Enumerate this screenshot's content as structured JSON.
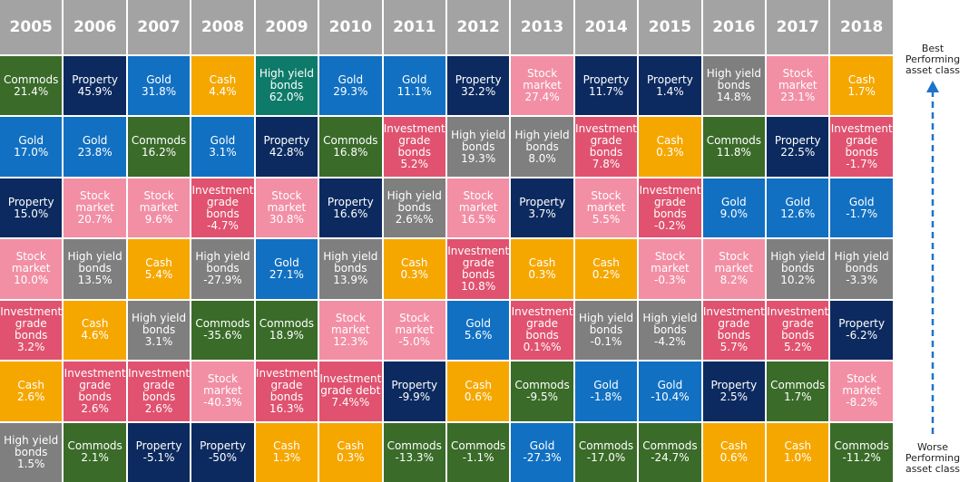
{
  "legend": {
    "top": "Best Performing asset class",
    "bottom": "Worse Performing asset class"
  },
  "colors": {
    "Commods": "#3a6b29",
    "Property": "#0c2a5f",
    "Gold": "#1170c2",
    "Cash": "#f5a700",
    "Stock market": "#f28fa5",
    "High yield bonds": "#7f7f7f",
    "Investment grade bonds": "#e0526f",
    "Investment grade debt": "#e0526f"
  },
  "table": {
    "columns": [
      {
        "year": "2005",
        "cells": [
          [
            "Commods",
            "21.4%"
          ],
          [
            "Gold",
            "17.0%"
          ],
          [
            "Property",
            "15.0%"
          ],
          [
            "Stock market",
            "10.0%"
          ],
          [
            "Investment grade bonds",
            "3.2%"
          ],
          [
            "Cash",
            "2.6%"
          ],
          [
            "High yield bonds",
            "1.5%"
          ]
        ]
      },
      {
        "year": "2006",
        "cells": [
          [
            "Property",
            "45.9%"
          ],
          [
            "Gold",
            "23.8%"
          ],
          [
            "Stock market",
            "20.7%"
          ],
          [
            "High yield bonds",
            "13.5%"
          ],
          [
            "Cash",
            "4.6%"
          ],
          [
            "Investment grade bonds",
            "2.6%"
          ],
          [
            "Commods",
            "2.1%"
          ]
        ]
      },
      {
        "year": "2007",
        "cells": [
          [
            "Gold",
            "31.8%"
          ],
          [
            "Commods",
            "16.2%"
          ],
          [
            "Stock market",
            "9.6%"
          ],
          [
            "Cash",
            "5.4%"
          ],
          [
            "High yield bonds",
            "3.1%"
          ],
          [
            "Investment grade bonds",
            "2.6%"
          ],
          [
            "Property",
            "-5.1%"
          ]
        ]
      },
      {
        "year": "2008",
        "cells": [
          [
            "Cash",
            "4.4%"
          ],
          [
            "Gold",
            "3.1%"
          ],
          [
            "Investment grade bonds",
            "-4.7%"
          ],
          [
            "High yield bonds",
            "-27.9%"
          ],
          [
            "Commods",
            "-35.6%"
          ],
          [
            "Stock market",
            "-40.3%"
          ],
          [
            "Property",
            "-50%"
          ]
        ]
      },
      {
        "year": "2009",
        "cells": [
          [
            "High yield bonds",
            "62.0%",
            "#0e7a69"
          ],
          [
            "Property",
            "42.8%"
          ],
          [
            "Stock market",
            "30.8%"
          ],
          [
            "Gold",
            "27.1%"
          ],
          [
            "Commods",
            "18.9%"
          ],
          [
            "Investment grade bonds",
            "16.3%"
          ],
          [
            "Cash",
            "1.3%"
          ]
        ]
      },
      {
        "year": "2010",
        "cells": [
          [
            "Gold",
            "29.3%"
          ],
          [
            "Commods",
            "16.8%"
          ],
          [
            "Property",
            "16.6%"
          ],
          [
            "High yield bonds",
            "13.9%"
          ],
          [
            "Stock market",
            "12.3%"
          ],
          [
            "Investment grade debt",
            "7.4%%"
          ],
          [
            "Cash",
            "0.3%"
          ]
        ]
      },
      {
        "year": "2011",
        "cells": [
          [
            "Gold",
            "11.1%"
          ],
          [
            "Investment grade bonds",
            "5.2%"
          ],
          [
            "High yield bonds",
            "2.6%%"
          ],
          [
            "Cash",
            "0.3%"
          ],
          [
            "Stock market",
            "-5.0%"
          ],
          [
            "Property",
            "-9.9%"
          ],
          [
            "Commods",
            "-13.3%"
          ]
        ]
      },
      {
        "year": "2012",
        "cells": [
          [
            "Property",
            "32.2%"
          ],
          [
            "High yield bonds",
            "19.3%"
          ],
          [
            "Stock market",
            "16.5%"
          ],
          [
            "Investment grade bonds",
            "10.8%"
          ],
          [
            "Gold",
            "5.6%"
          ],
          [
            "Cash",
            "0.6%"
          ],
          [
            "Commods",
            "-1.1%"
          ]
        ]
      },
      {
        "year": "2013",
        "cells": [
          [
            "Stock market",
            "27.4%"
          ],
          [
            "High yield bonds",
            "8.0%"
          ],
          [
            "Property",
            "3.7%"
          ],
          [
            "Cash",
            "0.3%"
          ],
          [
            "Investment grade bonds",
            "0.1%%"
          ],
          [
            "Commods",
            "-9.5%"
          ],
          [
            "Gold",
            "-27.3%"
          ]
        ]
      },
      {
        "year": "2014",
        "cells": [
          [
            "Property",
            "11.7%"
          ],
          [
            "Investment grade bonds",
            "7.8%"
          ],
          [
            "Stock market",
            "5.5%"
          ],
          [
            "Cash",
            "0.2%"
          ],
          [
            "High yield bonds",
            "-0.1%"
          ],
          [
            "Gold",
            "-1.8%"
          ],
          [
            "Commods",
            "-17.0%"
          ]
        ]
      },
      {
        "year": "2015",
        "cells": [
          [
            "Property",
            "1.4%"
          ],
          [
            "Cash",
            "0.3%"
          ],
          [
            "Investment grade bonds",
            "-0.2%"
          ],
          [
            "Stock market",
            "-0.3%"
          ],
          [
            "High yield bonds",
            "-4.2%"
          ],
          [
            "Gold",
            "-10.4%"
          ],
          [
            "Commods",
            "-24.7%"
          ]
        ]
      },
      {
        "year": "2016",
        "cells": [
          [
            "High yield bonds",
            "14.8%"
          ],
          [
            "Commods",
            "11.8%"
          ],
          [
            "Gold",
            "9.0%"
          ],
          [
            "Stock market",
            "8.2%"
          ],
          [
            "Investment grade bonds",
            "5.7%"
          ],
          [
            "Property",
            "2.5%"
          ],
          [
            "Cash",
            "0.6%"
          ]
        ]
      },
      {
        "year": "2017",
        "cells": [
          [
            "Stock market",
            "23.1%"
          ],
          [
            "Property",
            "22.5%"
          ],
          [
            "Gold",
            "12.6%"
          ],
          [
            "High yield bonds",
            "10.2%"
          ],
          [
            "Investment grade bonds",
            "5.2%"
          ],
          [
            "Commods",
            "1.7%"
          ],
          [
            "Cash",
            "1.0%"
          ]
        ]
      },
      {
        "year": "2018",
        "cells": [
          [
            "Cash",
            "1.7%"
          ],
          [
            "Investment grade bonds",
            "-1.7%"
          ],
          [
            "Gold",
            "-1.7%"
          ],
          [
            "High yield bonds",
            "-3.3%"
          ],
          [
            "Property",
            "-6.2%"
          ],
          [
            "Stock market",
            "-8.2%"
          ],
          [
            "Commods",
            "-11.2%"
          ]
        ]
      }
    ]
  }
}
